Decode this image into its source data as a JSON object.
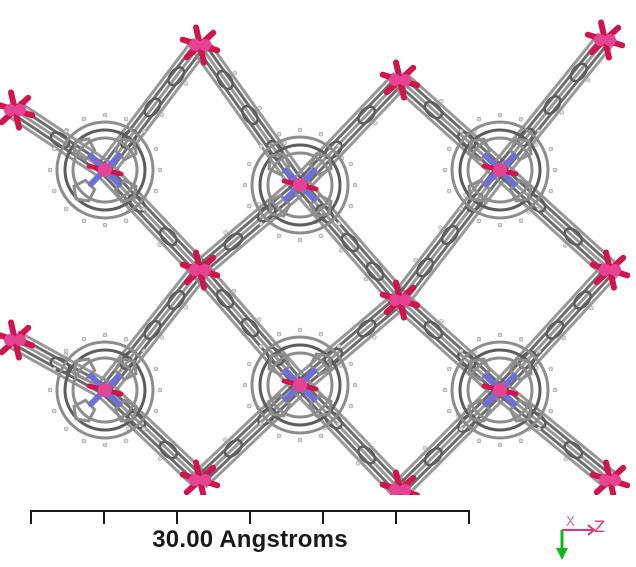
{
  "image": {
    "scale_bar": {
      "label": "30.00 Angstroms"
    },
    "axis_triad": {
      "x_label": "X",
      "z_label": "Z",
      "x_color": "#d66b9a",
      "z_color": "#e0337a",
      "y_color": "#12b81a"
    },
    "palette": {
      "carbon": "#8d8d8d",
      "carbon_dark": "#5d5d5d",
      "hydrogen": "#dcdcdc",
      "nitrogen": "#6f6fd8",
      "oxygen": "#d0154c",
      "metal": "#e64395"
    }
  }
}
